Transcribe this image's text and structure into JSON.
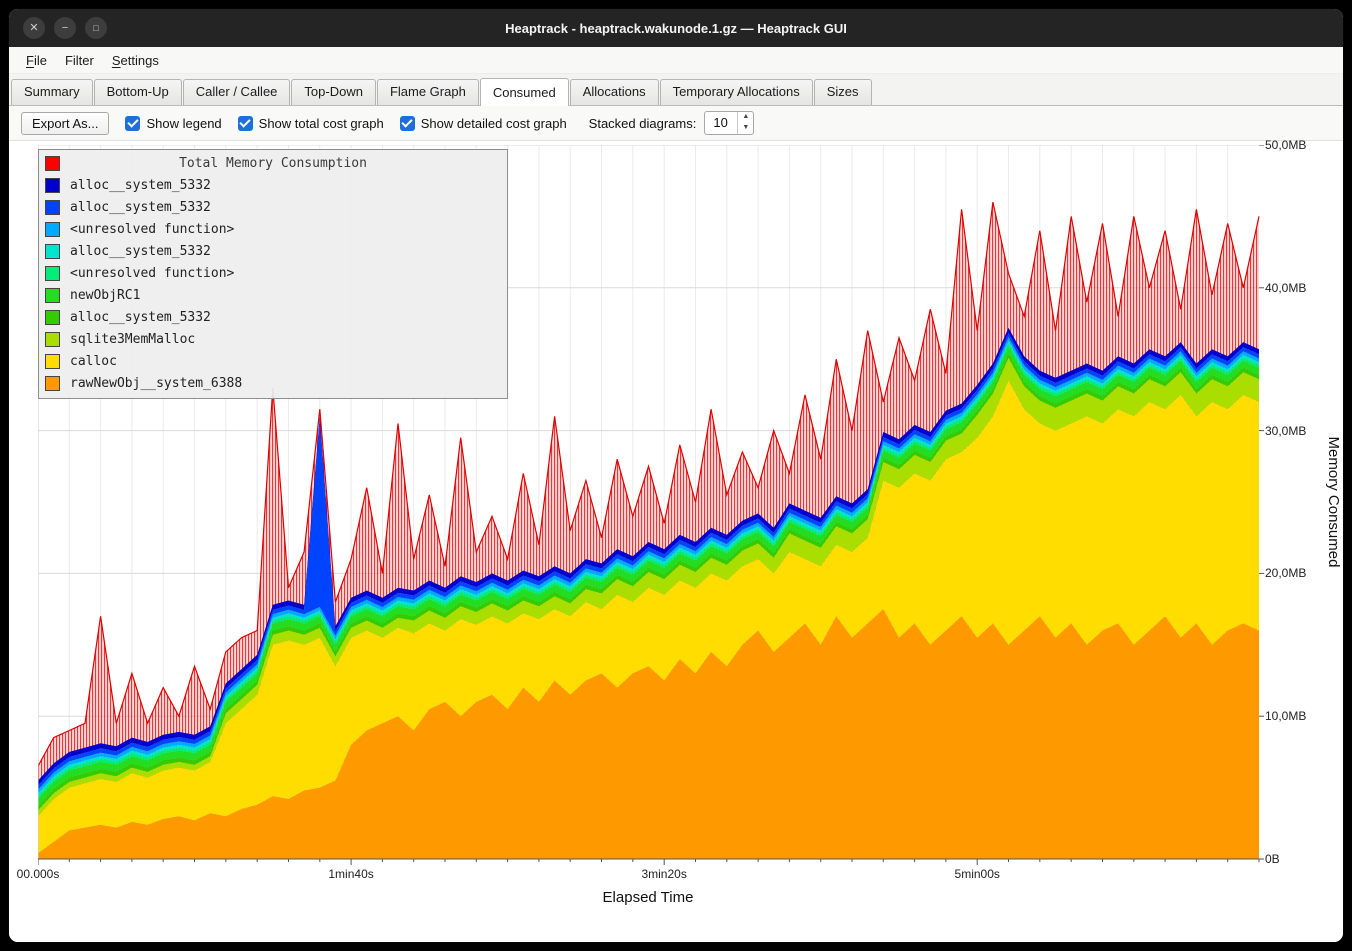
{
  "window": {
    "title": "Heaptrack - heaptrack.wakunode.1.gz — Heaptrack GUI",
    "controls": [
      {
        "name": "close",
        "glyph": "✕"
      },
      {
        "name": "minimize",
        "glyph": "−"
      },
      {
        "name": "maximize",
        "glyph": "□"
      }
    ]
  },
  "menubar": {
    "items": [
      {
        "label": "File",
        "underline_first": true
      },
      {
        "label": "Filter",
        "underline_first": false
      },
      {
        "label": "Settings",
        "underline_first": true
      }
    ]
  },
  "tabs": {
    "items": [
      "Summary",
      "Bottom-Up",
      "Caller / Callee",
      "Top-Down",
      "Flame Graph",
      "Consumed",
      "Allocations",
      "Temporary Allocations",
      "Sizes"
    ],
    "active": "Consumed"
  },
  "toolbar": {
    "export_button": "Export As...",
    "checkboxes": [
      {
        "label": "Show legend",
        "checked": true
      },
      {
        "label": "Show total cost graph",
        "checked": true
      },
      {
        "label": "Show detailed cost graph",
        "checked": true
      }
    ],
    "stacked_label": "Stacked diagrams:",
    "stacked_value": "10"
  },
  "legend": {
    "title": "Total Memory Consumption",
    "title_color": "#ff0000",
    "items": [
      {
        "label": "alloc__system_5332",
        "color": "#0000cc"
      },
      {
        "label": "alloc__system_5332",
        "color": "#0044ff"
      },
      {
        "label": "<unresolved function>",
        "color": "#00aaff"
      },
      {
        "label": "alloc__system_5332",
        "color": "#00e5cc"
      },
      {
        "label": "<unresolved function>",
        "color": "#00ee77"
      },
      {
        "label": "newObjRC1",
        "color": "#22dd22"
      },
      {
        "label": "alloc__system_5332",
        "color": "#33cc00"
      },
      {
        "label": "sqlite3MemMalloc",
        "color": "#aadd00"
      },
      {
        "label": "calloc",
        "color": "#ffdd00"
      },
      {
        "label": "rawNewObj__system_6388",
        "color": "#ff9900"
      }
    ]
  },
  "axes": {
    "x_axis_label": "Elapsed Time",
    "y_axis_label": "Memory Consumed",
    "x_ticks": [
      {
        "label": "00.000s",
        "value": 0
      },
      {
        "label": "1min40s",
        "value": 100
      },
      {
        "label": "3min20s",
        "value": 200
      },
      {
        "label": "5min00s",
        "value": 300
      }
    ],
    "y_ticks": [
      {
        "label": "0B",
        "value": 0
      },
      {
        "label": "10,0MB",
        "value": 10
      },
      {
        "label": "20,0MB",
        "value": 20
      },
      {
        "label": "30,0MB",
        "value": 30
      },
      {
        "label": "40,0MB",
        "value": 40
      },
      {
        "label": "50,0MB",
        "value": 50
      }
    ]
  },
  "chart_data": {
    "type": "area",
    "stacked": true,
    "title": "Total Memory Consumption",
    "xlabel": "Elapsed Time",
    "ylabel": "Memory Consumed",
    "x_unit": "seconds",
    "y_unit": "MB",
    "ylim": [
      0,
      50
    ],
    "grid": true,
    "legend_position": "top-left",
    "x": [
      0,
      5,
      10,
      15,
      20,
      25,
      30,
      35,
      40,
      45,
      50,
      55,
      60,
      65,
      70,
      75,
      80,
      85,
      90,
      95,
      100,
      105,
      110,
      115,
      120,
      125,
      130,
      135,
      140,
      145,
      150,
      155,
      160,
      165,
      170,
      175,
      180,
      185,
      190,
      195,
      200,
      205,
      210,
      215,
      220,
      225,
      230,
      235,
      240,
      245,
      250,
      255,
      260,
      265,
      270,
      275,
      280,
      285,
      290,
      295,
      300,
      305,
      310,
      315,
      320,
      325,
      330,
      335,
      340,
      345,
      350,
      355,
      360,
      365,
      370,
      375,
      380,
      385,
      390
    ],
    "series": [
      {
        "name": "rawNewObj__system_6388",
        "color": "#ff9900",
        "values": [
          0.4,
          1.2,
          2.0,
          2.2,
          2.4,
          2.2,
          2.6,
          2.4,
          2.8,
          3.0,
          2.7,
          3.2,
          3.0,
          3.5,
          3.8,
          4.4,
          4.2,
          4.8,
          5.0,
          5.5,
          8.0,
          9.0,
          9.5,
          10.0,
          9.0,
          10.5,
          11.0,
          10.0,
          11.0,
          11.5,
          10.5,
          12.0,
          11.0,
          12.5,
          11.5,
          12.5,
          13.0,
          12.0,
          13.0,
          13.5,
          12.5,
          14.0,
          13.0,
          14.5,
          13.5,
          15.0,
          16.0,
          14.5,
          15.5,
          16.5,
          15.0,
          17.0,
          15.5,
          16.5,
          17.5,
          15.5,
          16.5,
          15.0,
          16.0,
          17.0,
          15.5,
          16.5,
          15.0,
          16.0,
          17.0,
          15.5,
          16.5,
          15.0,
          16.0,
          16.5,
          15.0,
          16.0,
          17.0,
          15.5,
          16.5,
          15.0,
          16.0,
          16.5,
          16.0
        ]
      },
      {
        "name": "calloc",
        "color": "#ffdd00",
        "values": [
          2.6,
          3.0,
          3.0,
          3.1,
          3.2,
          3.2,
          3.4,
          3.3,
          3.4,
          3.4,
          3.5,
          3.6,
          6.5,
          7.0,
          7.7,
          10.6,
          11.1,
          10.2,
          10.5,
          8.0,
          7.5,
          7.0,
          6.0,
          6.2,
          6.8,
          6.0,
          5.0,
          6.8,
          5.4,
          5.5,
          6.0,
          5.2,
          5.8,
          5.0,
          5.5,
          5.5,
          4.5,
          6.5,
          5.0,
          5.5,
          6.0,
          5.5,
          6.0,
          5.5,
          6.0,
          5.5,
          5.0,
          5.5,
          6.0,
          4.5,
          5.5,
          5.0,
          6.0,
          6.0,
          9.0,
          10.5,
          10.5,
          11.5,
          12.0,
          11.5,
          14.0,
          14.5,
          18.5,
          15.5,
          13.5,
          14.5,
          14.0,
          16.0,
          14.5,
          15.0,
          16.0,
          16.0,
          14.5,
          17.0,
          14.5,
          17.0,
          15.5,
          16.0,
          16.0
        ]
      },
      {
        "name": "sqlite3MemMalloc",
        "color": "#aadd00",
        "values": [
          0.4,
          0.4,
          0.4,
          0.4,
          0.4,
          0.4,
          0.4,
          0.4,
          0.4,
          0.4,
          0.4,
          0.4,
          0.7,
          0.7,
          0.7,
          0.7,
          0.7,
          0.7,
          0.7,
          0.7,
          0.7,
          0.7,
          0.7,
          0.7,
          0.9,
          0.9,
          0.9,
          0.9,
          0.9,
          0.9,
          0.9,
          0.9,
          0.9,
          0.9,
          0.9,
          0.9,
          1.1,
          1.1,
          1.1,
          1.1,
          1.1,
          1.1,
          1.1,
          1.1,
          1.1,
          1.1,
          1.1,
          1.1,
          1.3,
          1.3,
          1.3,
          1.3,
          1.3,
          1.3,
          1.3,
          1.3,
          1.3,
          1.3,
          1.3,
          1.3,
          1.6,
          1.6,
          1.6,
          1.6,
          1.6,
          1.6,
          1.6,
          1.6,
          1.6,
          1.6,
          1.6,
          1.6,
          1.6,
          1.6,
          1.6,
          1.6,
          1.6,
          1.6,
          1.6
        ]
      },
      {
        "name": "alloc__system_5332",
        "color": "#33cc00",
        "constant": 0.3
      },
      {
        "name": "newObjRC1",
        "color": "#22dd22",
        "constant": 0.5
      },
      {
        "name": "<unresolved function>",
        "color": "#00ee77",
        "constant": 0.2
      },
      {
        "name": "alloc__system_5332",
        "color": "#00e5cc",
        "constant": 0.2
      },
      {
        "name": "<unresolved function>",
        "color": "#00aaff",
        "constant": 0.25
      },
      {
        "name": "alloc__system_5332",
        "color": "#0044ff",
        "values": [
          0.3,
          0.3,
          0.3,
          0.3,
          0.3,
          0.3,
          0.3,
          0.3,
          0.3,
          0.3,
          0.3,
          0.3,
          0.3,
          0.3,
          0.3,
          0.3,
          0.3,
          0.3,
          13.0,
          0.3,
          0.3,
          0.3,
          0.3,
          0.3,
          0.3,
          0.3,
          0.3,
          0.3,
          0.3,
          0.3,
          0.3,
          0.3,
          0.3,
          0.3,
          0.3,
          0.3,
          0.3,
          0.3,
          0.3,
          0.3,
          0.3,
          0.3,
          0.3,
          0.3,
          0.3,
          0.3,
          0.3,
          0.3,
          0.3,
          0.3,
          0.3,
          0.3,
          0.3,
          0.3,
          0.3,
          0.3,
          0.3,
          0.3,
          0.3,
          0.3,
          0.3,
          0.3,
          0.3,
          0.3,
          0.3,
          0.3,
          0.3,
          0.3,
          0.3,
          0.3,
          0.3,
          0.3,
          0.3,
          0.3,
          0.3,
          0.3,
          0.3,
          0.3,
          0.3
        ]
      },
      {
        "name": "alloc__system_5332",
        "color": "#0000cc",
        "constant": 0.35
      },
      {
        "name": "Total Memory Consumption",
        "color": "#ff0000",
        "role": "total",
        "values": [
          6.5,
          8.5,
          9.0,
          9.5,
          17.0,
          9.5,
          13.0,
          9.5,
          12.0,
          10.0,
          13.5,
          10.5,
          14.5,
          15.5,
          16.0,
          33.0,
          19.0,
          21.5,
          31.5,
          18.0,
          21.0,
          26.0,
          20.0,
          30.5,
          21.0,
          25.5,
          20.5,
          29.5,
          21.5,
          24.0,
          21.0,
          27.0,
          22.0,
          31.0,
          23.0,
          26.5,
          22.5,
          28.0,
          24.0,
          27.5,
          23.5,
          29.0,
          25.0,
          31.5,
          25.5,
          28.5,
          26.0,
          30.0,
          27.0,
          32.5,
          28.0,
          35.0,
          30.0,
          37.0,
          32.0,
          36.5,
          33.5,
          38.5,
          34.0,
          45.5,
          37.0,
          46.0,
          41.0,
          38.0,
          44.0,
          37.0,
          45.0,
          39.0,
          44.5,
          38.0,
          45.0,
          40.0,
          44.0,
          38.5,
          45.5,
          39.5,
          44.5,
          40.0,
          45.0
        ]
      }
    ]
  }
}
